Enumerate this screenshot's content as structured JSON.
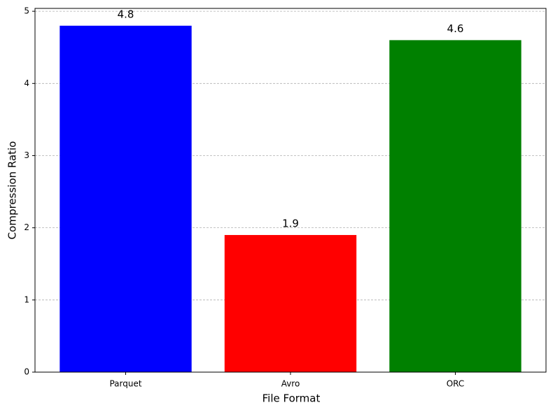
{
  "chart_data": {
    "type": "bar",
    "x_label": "File Format",
    "y_label": "Compression Ratio",
    "categories": [
      "Parquet",
      "Avro",
      "ORC"
    ],
    "values": [
      4.8,
      1.9,
      4.6
    ],
    "colors": [
      "#0000ff",
      "#ff0000",
      "#008000"
    ],
    "ylim": [
      0,
      5.04
    ],
    "yticks": [
      0,
      1,
      2,
      3,
      4,
      5
    ],
    "grid": true
  }
}
